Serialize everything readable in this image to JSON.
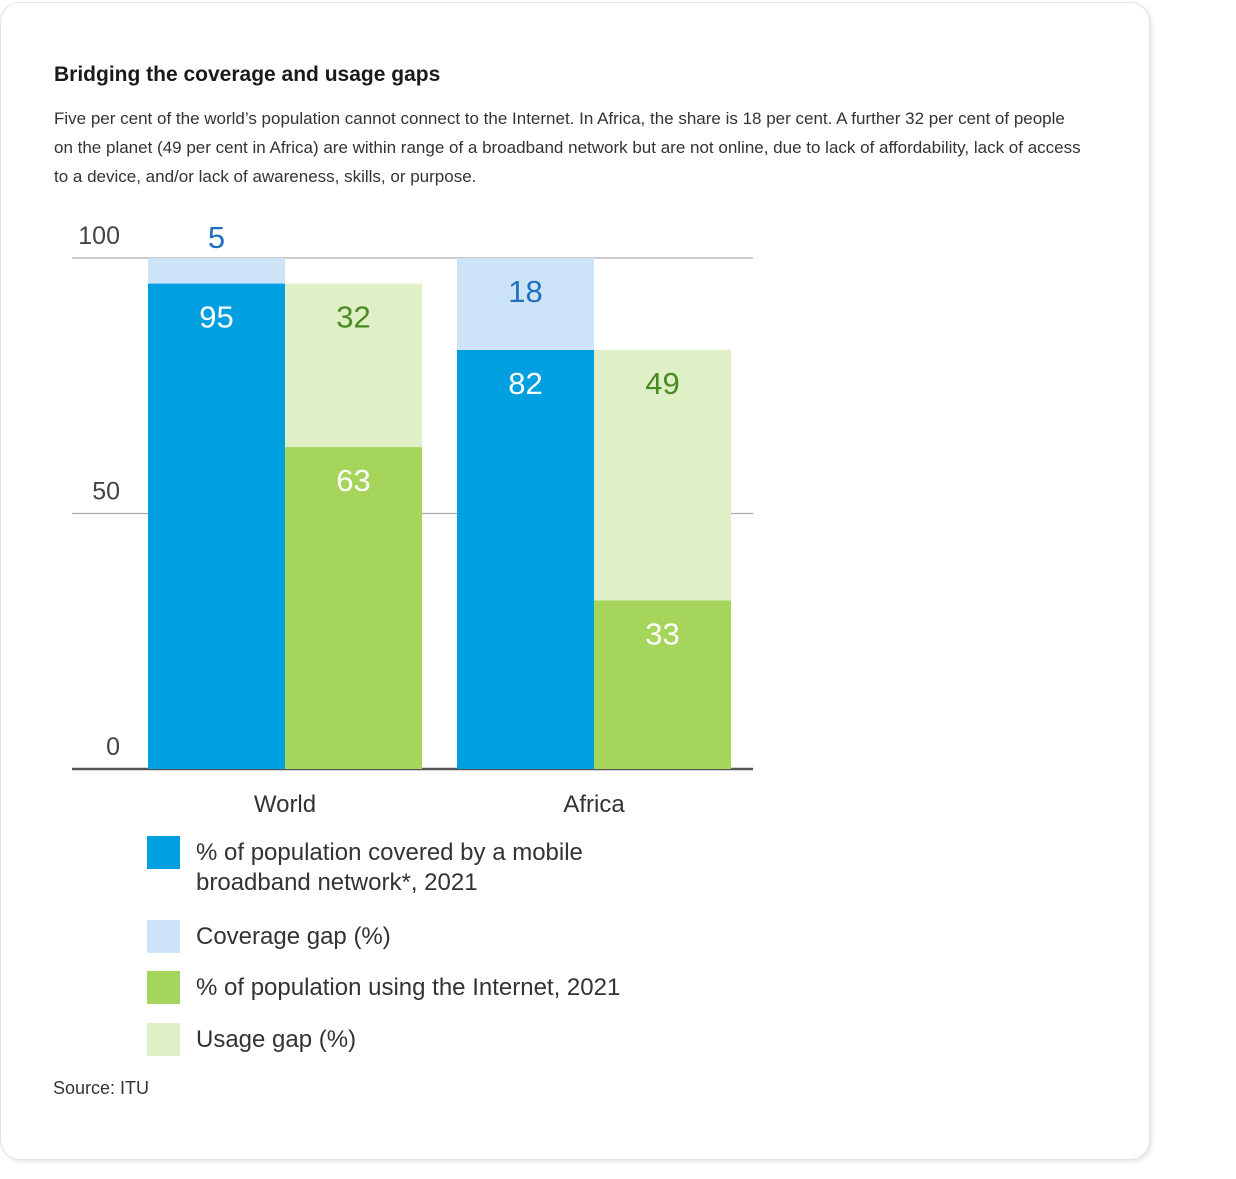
{
  "header": {
    "title": "Bridging the coverage and usage gaps",
    "subtitle": "Five per cent of the world’s population cannot connect to the Internet. In Africa, the share is 18 per cent. A further 32 per cent of people on the planet (49 per cent in Africa) are within range of a broadband network but are not online, due to lack of affordability, lack of access to a device, and/or lack of awareness, skills, or purpose."
  },
  "chart_data": {
    "type": "bar",
    "stacked": true,
    "categories": [
      "World",
      "Africa"
    ],
    "ylim": [
      0,
      100
    ],
    "yticks": [
      0,
      50,
      100
    ],
    "grid": true,
    "legend_position": "bottom",
    "groups": [
      {
        "category": "World",
        "bars": [
          {
            "segments": [
              {
                "series": "coverage",
                "value": 95,
                "label": "95"
              },
              {
                "series": "coverage_gap",
                "value": 5,
                "label": "5"
              }
            ]
          },
          {
            "segments": [
              {
                "series": "usage",
                "value": 63,
                "label": "63"
              },
              {
                "series": "usage_gap",
                "value": 32,
                "label": "32"
              }
            ]
          }
        ]
      },
      {
        "category": "Africa",
        "bars": [
          {
            "segments": [
              {
                "series": "coverage",
                "value": 82,
                "label": "82"
              },
              {
                "series": "coverage_gap",
                "value": 18,
                "label": "18"
              }
            ]
          },
          {
            "segments": [
              {
                "series": "usage",
                "value": 33,
                "label": "33"
              },
              {
                "series": "usage_gap",
                "value": 49,
                "label": "49"
              }
            ]
          }
        ]
      }
    ],
    "series": [
      {
        "key": "coverage",
        "name": "% of population covered by a mobile broadband network*, 2021",
        "color": "#009fdf",
        "label_color": "#ffffff"
      },
      {
        "key": "coverage_gap",
        "name": "Coverage gap (%)",
        "color": "#cde3f7",
        "label_color": "#1f70c0"
      },
      {
        "key": "usage",
        "name": "% of population using the Internet, 2021",
        "color": "#a5d55a",
        "label_color": "#ffffff"
      },
      {
        "key": "usage_gap",
        "name": "Usage gap (%)",
        "color": "#dff0c7",
        "label_color": "#4a8a22"
      }
    ]
  },
  "legend": {
    "items": [
      {
        "label": "% of population covered by a mobile broadband network*, 2021",
        "color": "#009fdf"
      },
      {
        "label": "Coverage gap (%)",
        "color": "#cde3f7"
      },
      {
        "label": "% of population using the Internet, 2021",
        "color": "#a5d55a"
      },
      {
        "label": "Usage gap (%)",
        "color": "#dff0c7"
      }
    ]
  },
  "footer": {
    "source": "Source: ITU"
  }
}
